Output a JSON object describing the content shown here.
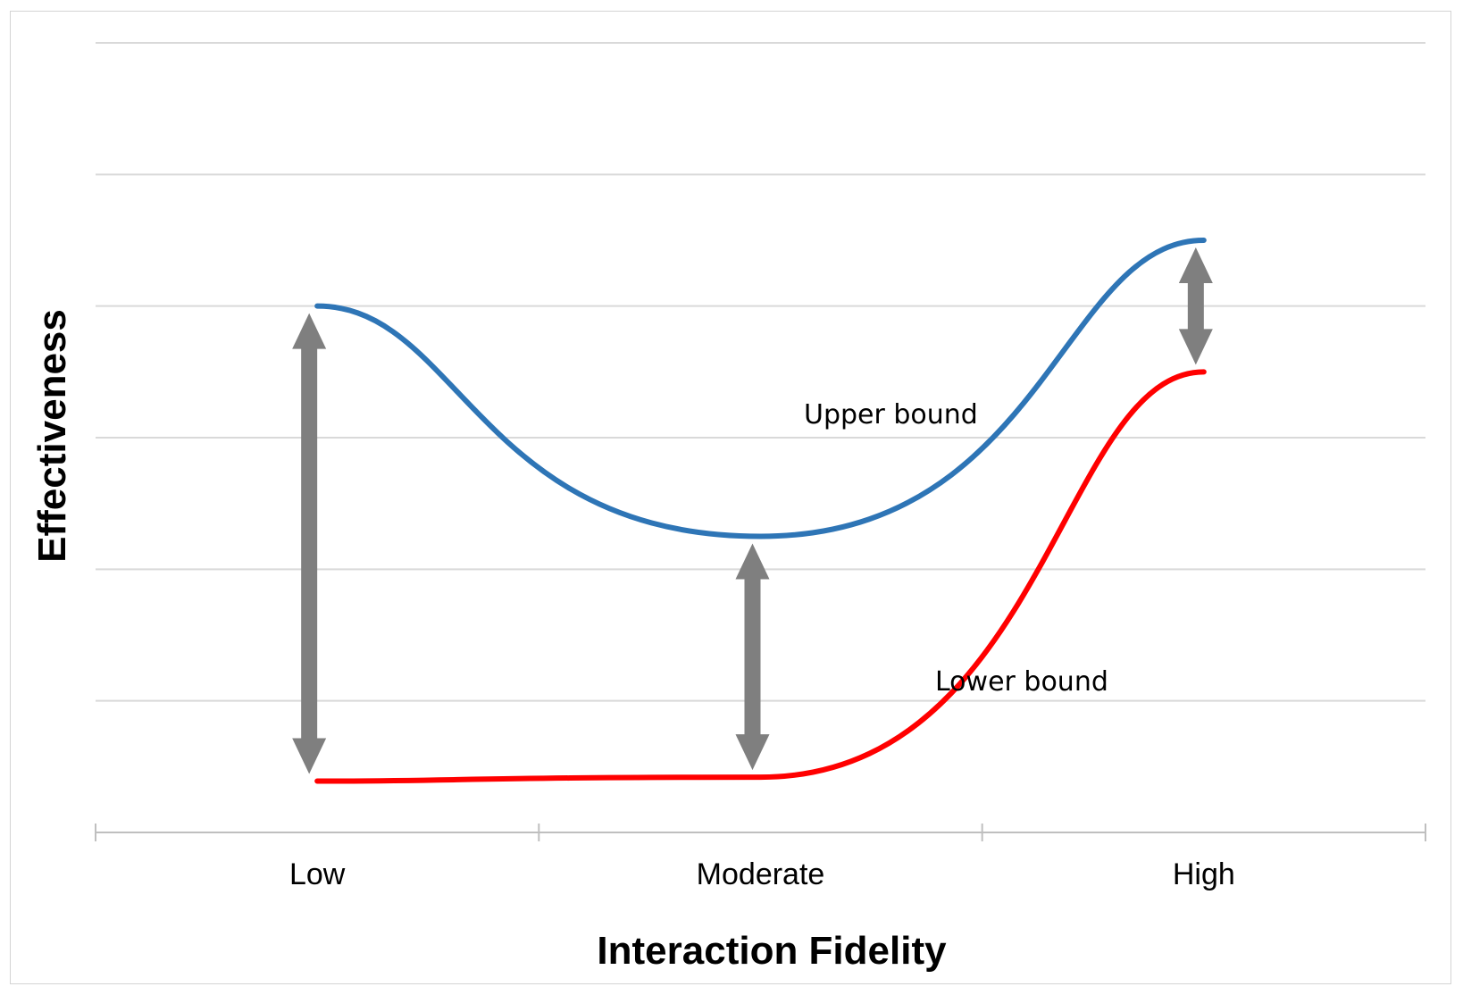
{
  "chart_data": {
    "type": "line",
    "title": "",
    "xlabel": "Interaction Fidelity",
    "ylabel": "Effectiveness",
    "categories": [
      "Low",
      "Moderate",
      "High"
    ],
    "ylim": [
      0,
      6
    ],
    "grid": true,
    "y_tick_labels": false,
    "series": [
      {
        "name": "Upper bound",
        "color": "#2e75b6",
        "x": [
          "Low",
          "Moderate",
          "High"
        ],
        "values": [
          4.0,
          2.25,
          4.5
        ]
      },
      {
        "name": "Lower bound",
        "color": "#ff0000",
        "x": [
          "Low",
          "Moderate",
          "High"
        ],
        "values": [
          0.39,
          0.42,
          3.5
        ]
      }
    ],
    "annotations": [
      {
        "text": "Upper bound",
        "series": "Upper bound"
      },
      {
        "text": "Lower bound",
        "series": "Lower bound"
      }
    ],
    "gap_arrows": [
      {
        "at": "Low",
        "from": 0.39,
        "to": 4.0,
        "color": "#7f7f7f"
      },
      {
        "at": "Moderate",
        "from": 0.42,
        "to": 2.25,
        "color": "#7f7f7f"
      },
      {
        "at": "High",
        "from": 3.5,
        "to": 4.5,
        "color": "#7f7f7f"
      }
    ],
    "gridline_color": "#d9d9d9",
    "axis_color": "#bfbfbf"
  }
}
